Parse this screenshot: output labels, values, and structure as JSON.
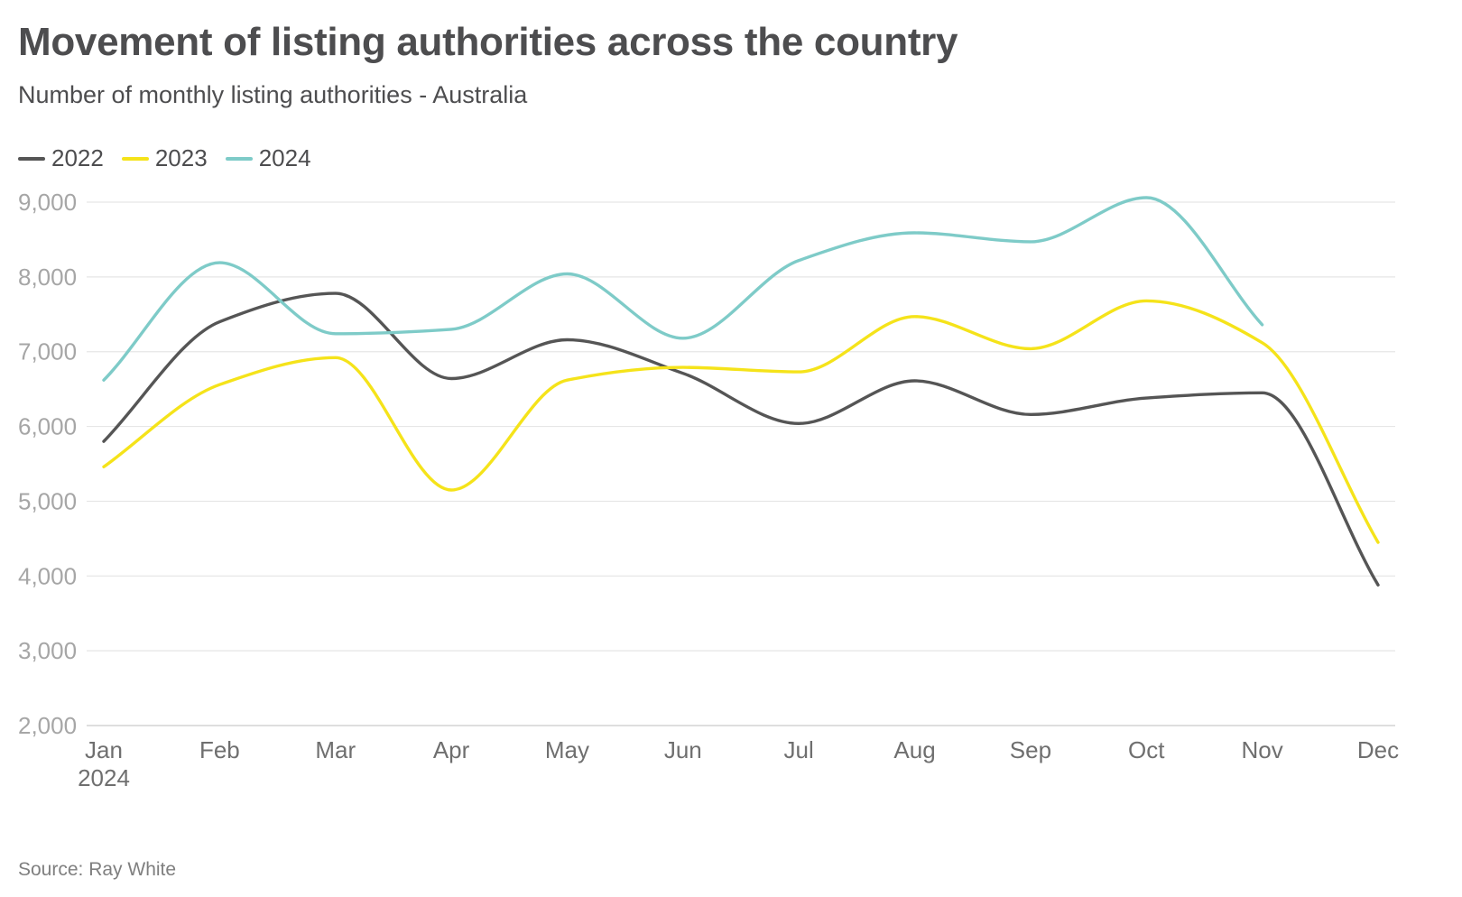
{
  "title": "Movement of listing authorities across the country",
  "subtitle": "Number of monthly listing authorities - Australia",
  "source": "Source: Ray White",
  "legend": [
    {
      "label": "2022",
      "color": "#555555"
    },
    {
      "label": "2023",
      "color": "#f5e31a"
    },
    {
      "label": "2024",
      "color": "#7ecbc8"
    }
  ],
  "chart_data": {
    "type": "line",
    "title": "Movement of listing authorities across the country",
    "subtitle": "Number of monthly listing authorities - Australia",
    "xlabel": "",
    "ylabel": "",
    "categories": [
      "Jan",
      "Feb",
      "Mar",
      "Apr",
      "May",
      "Jun",
      "Jul",
      "Aug",
      "Sep",
      "Oct",
      "Nov",
      "Dec"
    ],
    "x_sublabel": "2024",
    "ylim": [
      2000,
      9000
    ],
    "yticks": [
      2000,
      3000,
      4000,
      5000,
      6000,
      7000,
      8000,
      9000
    ],
    "grid": true,
    "legend_position": "top-left",
    "series": [
      {
        "name": "2022",
        "color": "#555555",
        "values": [
          5800,
          7400,
          7780,
          6640,
          7160,
          6710,
          6040,
          6610,
          6160,
          6380,
          6450,
          3880
        ]
      },
      {
        "name": "2023",
        "color": "#f5e31a",
        "values": [
          5460,
          6560,
          6920,
          5150,
          6620,
          6790,
          6730,
          7470,
          7040,
          7680,
          7120,
          4450
        ]
      },
      {
        "name": "2024",
        "color": "#7ecbc8",
        "values": [
          6620,
          8190,
          7240,
          7300,
          8040,
          7180,
          8220,
          8590,
          8470,
          9060,
          7360,
          null
        ]
      }
    ]
  }
}
